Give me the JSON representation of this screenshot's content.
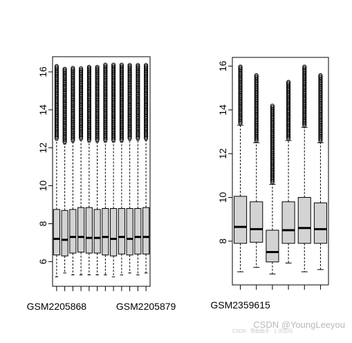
{
  "chart_data": [
    {
      "type": "boxplot",
      "ylim": [
        4.7,
        16.8
      ],
      "yticks": [
        6,
        8,
        10,
        12,
        14,
        16
      ],
      "tick_labels_shown": [
        "GSM2205868",
        "GSM2205879"
      ],
      "box_fill": "#d3d3d3",
      "boxes": [
        {
          "whisker_low": 5.2,
          "q1": 6.35,
          "median": 7.2,
          "q3": 8.75,
          "whisker_high": 12.4,
          "outlier_max": 16.3
        },
        {
          "whisker_low": 5.4,
          "q1": 6.3,
          "median": 7.15,
          "q3": 8.7,
          "whisker_high": 12.2,
          "outlier_max": 16.2
        },
        {
          "whisker_low": 5.3,
          "q1": 6.45,
          "median": 7.3,
          "q3": 8.75,
          "whisker_high": 12.3,
          "outlier_max": 16.2
        },
        {
          "whisker_low": 5.3,
          "q1": 6.5,
          "median": 7.3,
          "q3": 8.85,
          "whisker_high": 12.4,
          "outlier_max": 16.2
        },
        {
          "whisker_low": 5.3,
          "q1": 6.45,
          "median": 7.25,
          "q3": 8.85,
          "whisker_high": 12.3,
          "outlier_max": 16.3
        },
        {
          "whisker_low": 5.3,
          "q1": 6.45,
          "median": 7.25,
          "q3": 8.75,
          "whisker_high": 12.3,
          "outlier_max": 16.3
        },
        {
          "whisker_low": 5.3,
          "q1": 6.35,
          "median": 7.3,
          "q3": 8.8,
          "whisker_high": 12.3,
          "outlier_max": 16.4
        },
        {
          "whisker_low": 5.2,
          "q1": 6.3,
          "median": 7.2,
          "q3": 8.8,
          "whisker_high": 12.3,
          "outlier_max": 16.4
        },
        {
          "whisker_low": 5.3,
          "q1": 6.4,
          "median": 7.3,
          "q3": 8.8,
          "whisker_high": 12.3,
          "outlier_max": 16.4
        },
        {
          "whisker_low": 5.4,
          "q1": 6.35,
          "median": 7.2,
          "q3": 8.8,
          "whisker_high": 12.4,
          "outlier_max": 16.4
        },
        {
          "whisker_low": 5.3,
          "q1": 6.4,
          "median": 7.3,
          "q3": 8.8,
          "whisker_high": 12.4,
          "outlier_max": 16.4
        },
        {
          "whisker_low": 5.4,
          "q1": 6.4,
          "median": 7.3,
          "q3": 8.85,
          "whisker_high": 12.4,
          "outlier_max": 16.4
        }
      ]
    },
    {
      "type": "boxplot",
      "ylim": [
        6.0,
        16.4
      ],
      "yticks": [
        8,
        10,
        12,
        14,
        16
      ],
      "tick_labels_shown": [
        "GSM2359615"
      ],
      "box_fill": "#d3d3d3",
      "boxes": [
        {
          "whisker_low": 6.6,
          "q1": 7.9,
          "median": 8.65,
          "q3": 10.05,
          "whisker_high": 13.3,
          "outlier_max": 16.0
        },
        {
          "whisker_low": 6.8,
          "q1": 7.95,
          "median": 8.55,
          "q3": 9.8,
          "whisker_high": 12.5,
          "outlier_max": 15.6
        },
        {
          "whisker_low": 6.5,
          "q1": 7.05,
          "median": 7.5,
          "q3": 8.5,
          "whisker_high": 10.6,
          "outlier_max": 14.2
        },
        {
          "whisker_low": 7.0,
          "q1": 7.9,
          "median": 8.5,
          "q3": 9.8,
          "whisker_high": 12.6,
          "outlier_max": 15.3
        },
        {
          "whisker_low": 6.6,
          "q1": 7.9,
          "median": 8.6,
          "q3": 10.0,
          "whisker_high": 13.2,
          "outlier_max": 16.0
        },
        {
          "whisker_low": 6.7,
          "q1": 7.9,
          "median": 8.55,
          "q3": 9.75,
          "whisker_high": 12.5,
          "outlier_max": 15.6
        }
      ]
    }
  ],
  "watermark": {
    "main": "CSDN @YoungLeeyou",
    "sub": "CSDN · 帮助助手 · 1 次访问"
  }
}
